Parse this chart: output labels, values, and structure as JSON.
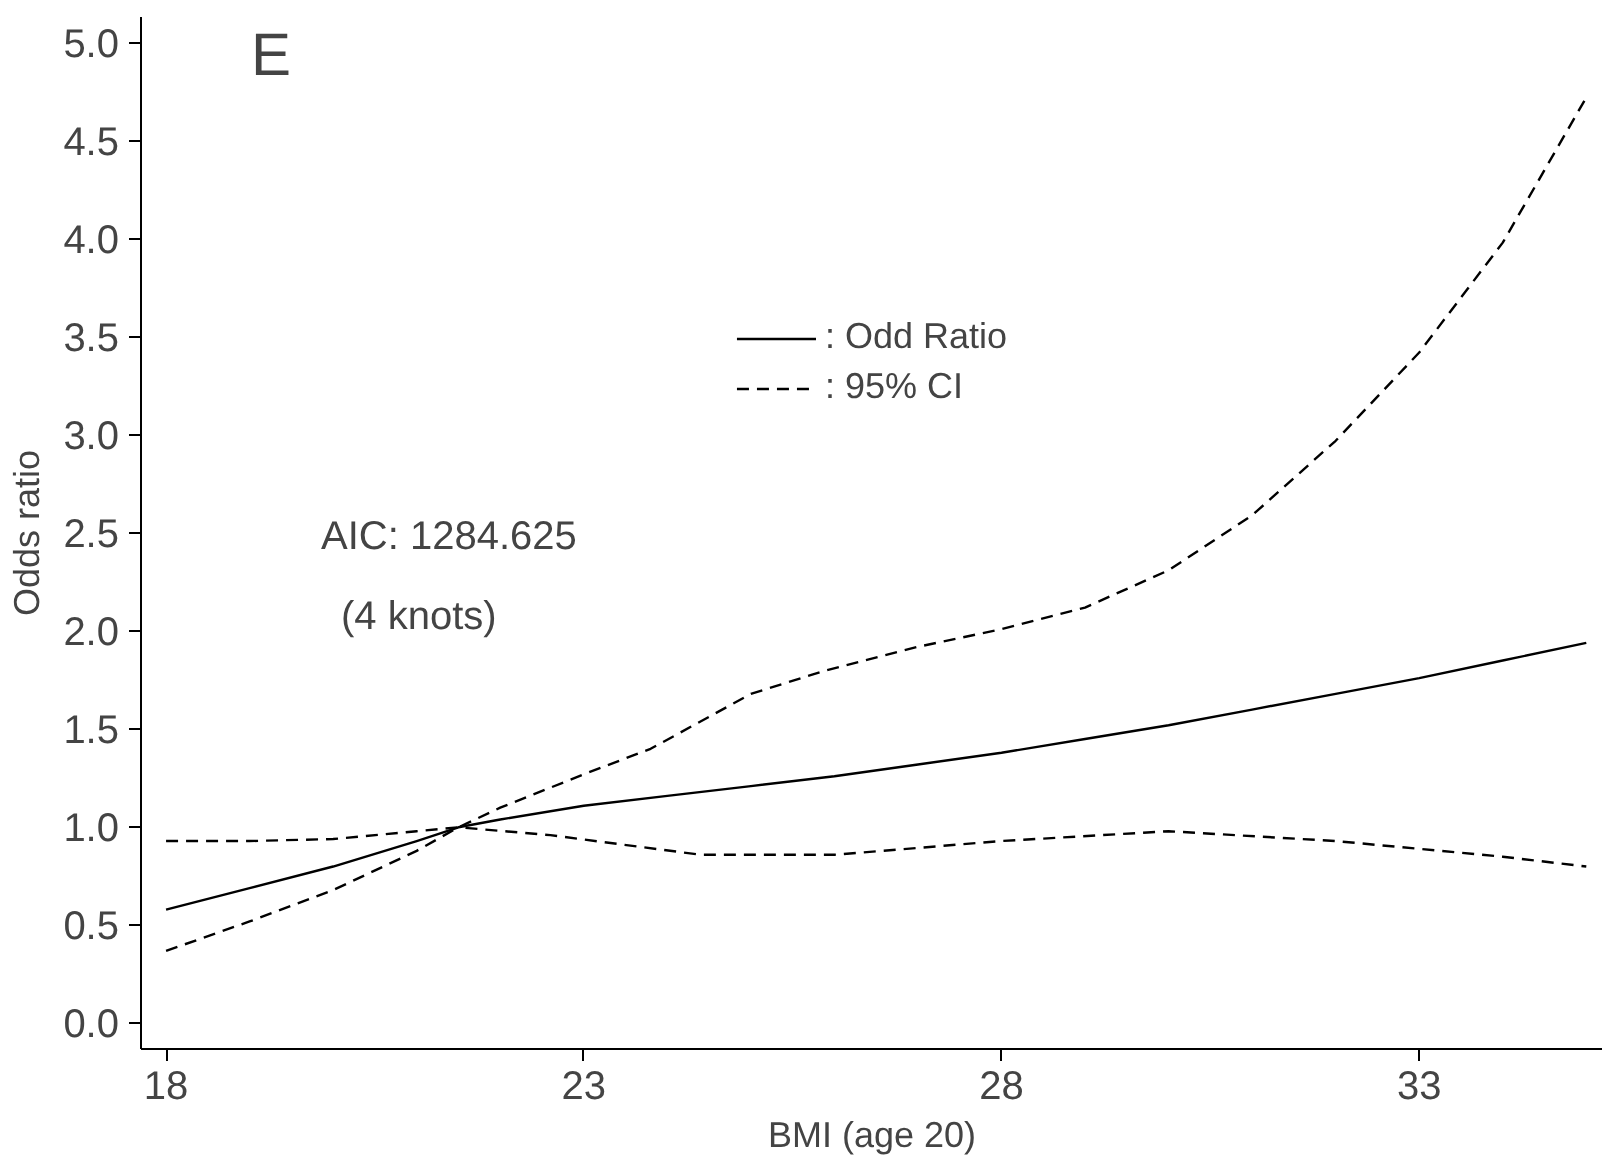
{
  "chart_data": {
    "type": "line",
    "title": "E",
    "xlabel": "BMI (age 20)",
    "ylabel": "Odds ratio",
    "xlim": [
      17.7,
      35.2
    ],
    "ylim": [
      -0.13,
      5.13
    ],
    "xticks": [
      18,
      23,
      28,
      33
    ],
    "yticks": [
      {
        "value": 0,
        "label": "0.0"
      },
      {
        "value": 0.5,
        "label": "0.5"
      },
      {
        "value": 1,
        "label": "1.0"
      },
      {
        "value": 1.5,
        "label": "1.5"
      },
      {
        "value": 2,
        "label": "2.0"
      },
      {
        "value": 2.5,
        "label": "2.5"
      },
      {
        "value": 3,
        "label": "3.0"
      },
      {
        "value": 3.5,
        "label": "3.5"
      },
      {
        "value": 4,
        "label": "4.0"
      },
      {
        "value": 4.5,
        "label": "4.5"
      },
      {
        "value": 5,
        "label": "5.0"
      }
    ],
    "grid": false,
    "legend": "top",
    "marker": "none",
    "annotations": [
      "AIC: 1284.625",
      "(4 knots)"
    ],
    "series": [
      {
        "name": ": Odd Ratio",
        "color": "#000000",
        "line_style": "solid",
        "x": [
          18,
          19,
          20,
          21,
          21.5,
          22,
          23,
          24,
          25,
          26,
          27,
          28,
          29,
          30,
          31,
          32,
          33,
          34,
          35
        ],
        "values": [
          0.58,
          0.69,
          0.8,
          0.93,
          1.0,
          1.04,
          1.11,
          1.16,
          1.21,
          1.26,
          1.32,
          1.38,
          1.45,
          1.52,
          1.6,
          1.68,
          1.76,
          1.85,
          1.94
        ]
      },
      {
        "name": ": 95% CI",
        "color": "#000000",
        "line_style": "dashed",
        "x": [
          18,
          19,
          20,
          21,
          21.5,
          22,
          23,
          23.8,
          25,
          25.9,
          27,
          28,
          29,
          30,
          31,
          32,
          33,
          34,
          35
        ],
        "values": [
          0.37,
          0.52,
          0.68,
          0.88,
          1.0,
          1.1,
          1.27,
          1.4,
          1.68,
          1.8,
          1.92,
          2.01,
          2.12,
          2.31,
          2.59,
          2.97,
          3.42,
          3.98,
          4.72
        ]
      },
      {
        "color": "#000000",
        "line_style": "dashed",
        "x": [
          18,
          19,
          20,
          21,
          21.5,
          22.6,
          24.4,
          26,
          28,
          30,
          32,
          33,
          34,
          35
        ],
        "values": [
          0.93,
          0.93,
          0.94,
          0.98,
          1.0,
          0.96,
          0.86,
          0.86,
          0.93,
          0.98,
          0.93,
          0.89,
          0.85,
          0.8
        ]
      }
    ]
  }
}
